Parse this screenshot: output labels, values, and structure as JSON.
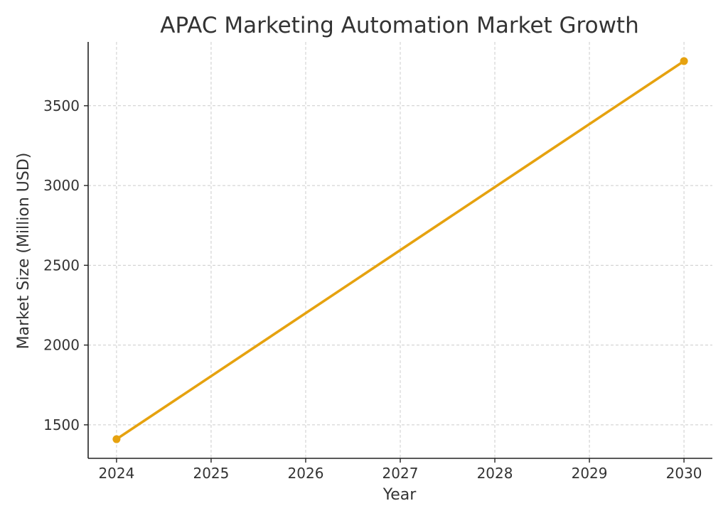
{
  "chart_data": {
    "type": "line",
    "title": "APAC Marketing Automation Market Growth",
    "xlabel": "Year",
    "ylabel": "Market Size (Million USD)",
    "x": [
      2024,
      2030
    ],
    "series": [
      {
        "values": [
          1410,
          3780
        ],
        "color": "#e6a20f"
      }
    ],
    "xticks": [
      2024,
      2025,
      2026,
      2027,
      2028,
      2029,
      2030
    ],
    "yticks": [
      1500,
      2000,
      2500,
      3000,
      3500
    ],
    "xlim": [
      2023.7,
      2030.3
    ],
    "ylim": [
      1290,
      3900
    ],
    "grid": true,
    "markers": "circle"
  }
}
